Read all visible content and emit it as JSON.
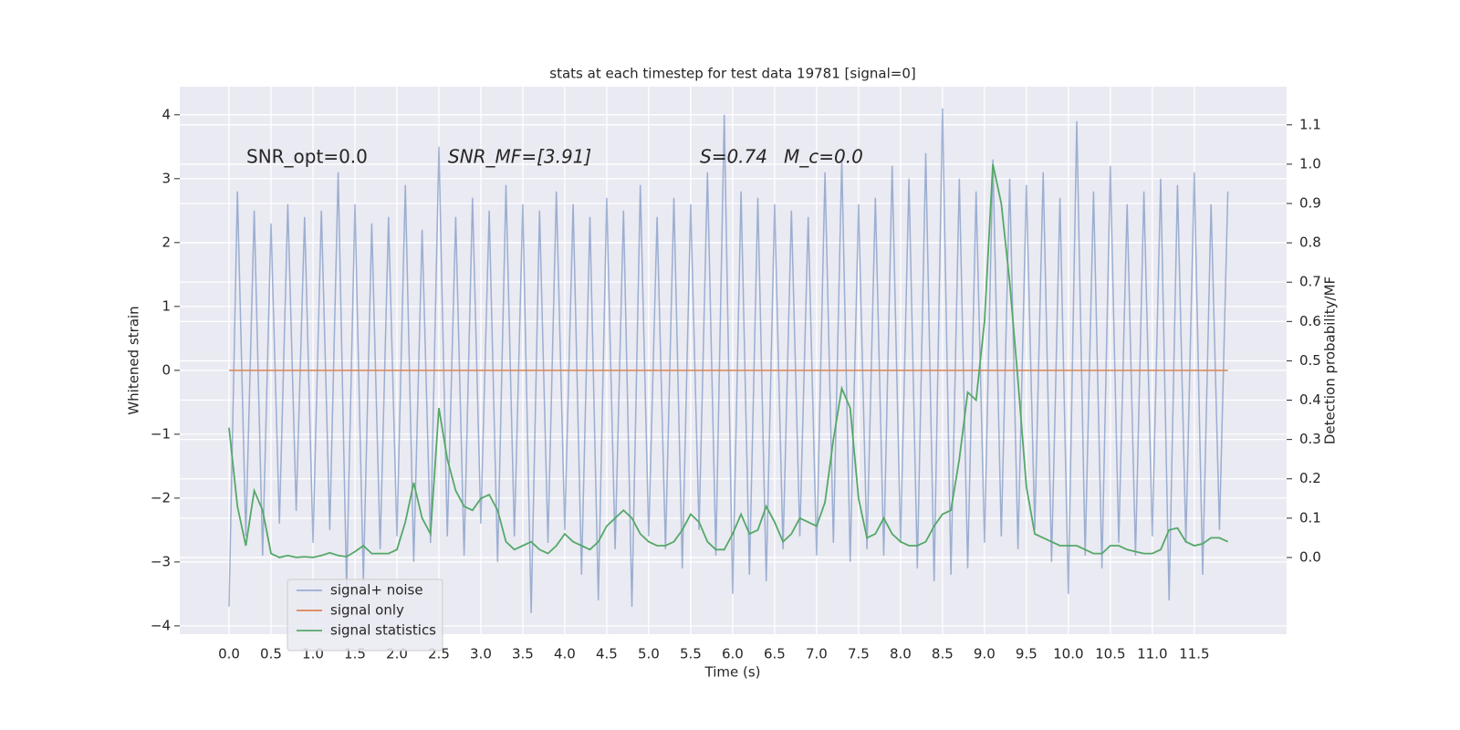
{
  "chart_data": {
    "type": "line",
    "title": "stats at each timestep for test data 19781 [signal=0]",
    "xlabel": "Time (s)",
    "ylabel": "Whitened strain",
    "y2label": "Detection probability/MF",
    "annotations": [
      "SNR_opt=0.0",
      "SNR_MF=[3.91]",
      "S=0.74",
      "M_c=0.0"
    ],
    "legend": "lower left",
    "grid": true,
    "xlim": [
      -0.587,
      12.6
    ],
    "ylim": [
      -4.13,
      4.44
    ],
    "y2lim": [
      -0.195,
      1.197
    ],
    "xticks": [
      {
        "value": 0,
        "label": "0.0"
      },
      0.5,
      {
        "value": 1,
        "label": "1.0"
      },
      1.5,
      {
        "value": 2,
        "label": "2.0"
      },
      2.5,
      {
        "value": 3,
        "label": "3.0"
      },
      3.5,
      {
        "value": 4,
        "label": "4.0"
      },
      4.5,
      {
        "value": 5,
        "label": "5.0"
      },
      5.5,
      {
        "value": 6,
        "label": "6.0"
      },
      6.5,
      {
        "value": 7,
        "label": "7.0"
      },
      7.5,
      {
        "value": 8,
        "label": "8.0"
      },
      8.5,
      {
        "value": 9,
        "label": "9.0"
      },
      9.5,
      {
        "value": 10,
        "label": "10.0"
      },
      10.5,
      {
        "value": 11,
        "label": "11.0"
      },
      11.5
    ],
    "yticks": [
      {
        "value": -4,
        "label": "−4"
      },
      {
        "value": -3,
        "label": "−3"
      },
      {
        "value": -2,
        "label": "−2"
      },
      {
        "value": -1,
        "label": "−1"
      },
      0,
      1,
      2,
      3,
      4
    ],
    "y2ticks": [
      {
        "value": 0,
        "label": "0.0"
      },
      0.1,
      0.2,
      0.3,
      0.4,
      0.5,
      0.6,
      0.7,
      0.8,
      0.9,
      {
        "value": 1,
        "label": "1.0"
      },
      1.1
    ],
    "x": [
      0,
      0.1,
      0.2,
      0.3,
      0.4,
      0.5,
      0.6,
      0.7,
      0.8,
      0.9,
      1,
      1.1,
      1.2,
      1.3,
      1.4,
      1.5,
      1.6,
      1.7,
      1.8,
      1.9,
      2,
      2.1,
      2.2,
      2.3,
      2.4,
      2.5,
      2.6,
      2.7,
      2.8,
      2.9,
      3,
      3.1,
      3.2,
      3.3,
      3.4,
      3.5,
      3.6,
      3.7,
      3.8,
      3.9,
      4,
      4.1,
      4.2,
      4.3,
      4.4,
      4.5,
      4.6,
      4.7,
      4.8,
      4.9,
      5,
      5.1,
      5.2,
      5.3,
      5.4,
      5.5,
      5.6,
      5.7,
      5.8,
      5.9,
      6,
      6.1,
      6.2,
      6.3,
      6.4,
      6.5,
      6.6,
      6.7,
      6.8,
      6.9,
      7,
      7.1,
      7.2,
      7.3,
      7.4,
      7.5,
      7.6,
      7.7,
      7.8,
      7.9,
      8,
      8.1,
      8.2,
      8.3,
      8.4,
      8.5,
      8.6,
      8.7,
      8.8,
      8.9,
      9,
      9.1,
      9.2,
      9.3,
      9.4,
      9.5,
      9.6,
      9.7,
      9.8,
      9.9,
      10,
      10.1,
      10.2,
      10.3,
      10.4,
      10.5,
      10.6,
      10.7,
      10.8,
      10.9,
      11,
      11.1,
      11.2,
      11.3,
      11.4,
      11.5,
      11.6,
      11.7,
      11.8,
      11.9
    ],
    "series": [
      {
        "name": "signal+ noise",
        "color": "#4c72b0",
        "opacity": 0.5,
        "values": [
          -3.7,
          2.8,
          -2.6,
          2.5,
          -2.9,
          2.3,
          -2.4,
          2.6,
          -2.2,
          2.4,
          -2.7,
          2.5,
          -2.5,
          3.1,
          -3.4,
          2.6,
          -3.3,
          2.3,
          -2.8,
          2.4,
          -2.6,
          2.9,
          -3.0,
          2.2,
          -2.7,
          3.5,
          -2.6,
          2.4,
          -2.9,
          2.7,
          -2.4,
          2.5,
          -3.0,
          2.9,
          -2.6,
          2.6,
          -3.8,
          2.5,
          -2.7,
          2.8,
          -2.5,
          2.6,
          -3.2,
          2.4,
          -3.6,
          2.7,
          -2.8,
          2.5,
          -3.7,
          2.9,
          -2.6,
          2.4,
          -2.8,
          2.7,
          -3.1,
          2.6,
          -2.5,
          3.1,
          -2.9,
          4.0,
          -3.5,
          2.8,
          -3.2,
          2.7,
          -3.3,
          2.6,
          -2.8,
          2.5,
          -2.6,
          2.4,
          -2.9,
          3.1,
          -2.7,
          3.3,
          -3.0,
          2.6,
          -2.8,
          2.7,
          -2.9,
          3.2,
          -2.7,
          3.0,
          -3.1,
          3.4,
          -3.3,
          4.1,
          -3.2,
          3.0,
          -3.1,
          2.8,
          -2.7,
          3.3,
          -2.6,
          3.0,
          -2.8,
          2.9,
          -2.5,
          3.1,
          -3.0,
          2.7,
          -3.5,
          3.9,
          -2.9,
          2.8,
          -3.1,
          3.2,
          -2.7,
          2.6,
          -2.9,
          2.8,
          -2.6,
          3.0,
          -3.6,
          2.9,
          -2.7,
          3.1,
          -3.2,
          2.6,
          -2.5,
          2.8
        ]
      },
      {
        "name": "signal only",
        "color": "#dd8452",
        "opacity": 1,
        "values": [
          0,
          0,
          0,
          0,
          0,
          0,
          0,
          0,
          0,
          0,
          0,
          0,
          0,
          0,
          0,
          0,
          0,
          0,
          0,
          0,
          0,
          0,
          0,
          0,
          0,
          0,
          0,
          0,
          0,
          0,
          0,
          0,
          0,
          0,
          0,
          0,
          0,
          0,
          0,
          0,
          0,
          0,
          0,
          0,
          0,
          0,
          0,
          0,
          0,
          0,
          0,
          0,
          0,
          0,
          0,
          0,
          0,
          0,
          0,
          0,
          0,
          0,
          0,
          0,
          0,
          0,
          0,
          0,
          0,
          0,
          0,
          0,
          0,
          0,
          0,
          0,
          0,
          0,
          0,
          0,
          0,
          0,
          0,
          0,
          0,
          0,
          0,
          0,
          0,
          0,
          0,
          0,
          0,
          0,
          0,
          0,
          0,
          0,
          0,
          0,
          0,
          0,
          0,
          0,
          0,
          0,
          0,
          0,
          0,
          0,
          0,
          0,
          0,
          0,
          0,
          0,
          0,
          0,
          0,
          0
        ]
      },
      {
        "name": "signal statistics",
        "color": "#55a868",
        "opacity": 1,
        "axis": "y2",
        "values": [
          0.33,
          0.13,
          0.03,
          0.17,
          0.12,
          0.01,
          0.0,
          0.005,
          0.0,
          0.002,
          0.0,
          0.005,
          0.012,
          0.005,
          0.002,
          0.015,
          0.03,
          0.01,
          0.01,
          0.01,
          0.02,
          0.09,
          0.19,
          0.1,
          0.06,
          0.38,
          0.25,
          0.17,
          0.13,
          0.12,
          0.15,
          0.16,
          0.12,
          0.04,
          0.02,
          0.03,
          0.04,
          0.02,
          0.01,
          0.03,
          0.06,
          0.04,
          0.03,
          0.02,
          0.04,
          0.08,
          0.1,
          0.12,
          0.1,
          0.06,
          0.04,
          0.03,
          0.03,
          0.04,
          0.07,
          0.11,
          0.09,
          0.04,
          0.02,
          0.02,
          0.06,
          0.11,
          0.06,
          0.07,
          0.13,
          0.09,
          0.04,
          0.06,
          0.1,
          0.09,
          0.08,
          0.14,
          0.3,
          0.43,
          0.38,
          0.15,
          0.05,
          0.06,
          0.1,
          0.06,
          0.04,
          0.03,
          0.03,
          0.04,
          0.08,
          0.11,
          0.12,
          0.25,
          0.42,
          0.4,
          0.6,
          1.0,
          0.9,
          0.7,
          0.45,
          0.18,
          0.06,
          0.05,
          0.04,
          0.03,
          0.03,
          0.03,
          0.02,
          0.01,
          0.01,
          0.03,
          0.03,
          0.02,
          0.015,
          0.01,
          0.01,
          0.02,
          0.07,
          0.075,
          0.04,
          0.03,
          0.035,
          0.05,
          0.05,
          0.04
        ]
      }
    ]
  }
}
